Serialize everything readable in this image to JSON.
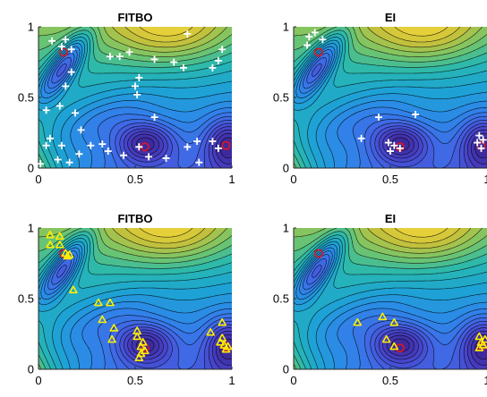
{
  "chart_data": [
    {
      "type": "scatter",
      "title": "FITBO",
      "background": "contour",
      "xlim": [
        0,
        1
      ],
      "ylim": [
        0,
        1
      ],
      "x_ticks": [
        "0",
        "0.5",
        "1"
      ],
      "y_ticks": [
        "0",
        "0.5",
        "1"
      ],
      "marker": "plus",
      "marker_color": "#ffffff",
      "optima": [
        {
          "x": 0.13,
          "y": 0.82
        },
        {
          "x": 0.55,
          "y": 0.15
        },
        {
          "x": 0.97,
          "y": 0.16
        }
      ],
      "points": [
        {
          "x": 0.07,
          "y": 0.9
        },
        {
          "x": 0.12,
          "y": 0.86
        },
        {
          "x": 0.14,
          "y": 0.91
        },
        {
          "x": 0.17,
          "y": 0.84
        },
        {
          "x": 0.17,
          "y": 0.68
        },
        {
          "x": 0.14,
          "y": 0.58
        },
        {
          "x": 0.11,
          "y": 0.44
        },
        {
          "x": 0.04,
          "y": 0.41
        },
        {
          "x": 0.19,
          "y": 0.39
        },
        {
          "x": 0.22,
          "y": 0.27
        },
        {
          "x": 0.06,
          "y": 0.21
        },
        {
          "x": 0.04,
          "y": 0.16
        },
        {
          "x": 0.12,
          "y": 0.16
        },
        {
          "x": 0.1,
          "y": 0.06
        },
        {
          "x": 0.16,
          "y": 0.04
        },
        {
          "x": 0.27,
          "y": 0.16
        },
        {
          "x": 0.36,
          "y": 0.12
        },
        {
          "x": 0.33,
          "y": 0.17
        },
        {
          "x": 0.21,
          "y": 0.1
        },
        {
          "x": 0.44,
          "y": 0.09
        },
        {
          "x": 0.52,
          "y": 0.15
        },
        {
          "x": 0.5,
          "y": 0.58
        },
        {
          "x": 0.51,
          "y": 0.52
        },
        {
          "x": 0.52,
          "y": 0.64
        },
        {
          "x": 0.37,
          "y": 0.79
        },
        {
          "x": 0.42,
          "y": 0.79
        },
        {
          "x": 0.47,
          "y": 0.82
        },
        {
          "x": 0.6,
          "y": 0.77
        },
        {
          "x": 0.7,
          "y": 0.75
        },
        {
          "x": 0.75,
          "y": 0.71
        },
        {
          "x": 0.77,
          "y": 0.95
        },
        {
          "x": 0.9,
          "y": 0.71
        },
        {
          "x": 0.93,
          "y": 0.76
        },
        {
          "x": 0.95,
          "y": 0.84
        },
        {
          "x": 0.6,
          "y": 0.36
        },
        {
          "x": 0.66,
          "y": 0.07
        },
        {
          "x": 0.77,
          "y": 0.15
        },
        {
          "x": 0.82,
          "y": 0.19
        },
        {
          "x": 0.9,
          "y": 0.19
        },
        {
          "x": 0.93,
          "y": 0.14
        },
        {
          "x": 0.83,
          "y": 0.04
        },
        {
          "x": 0.57,
          "y": 0.08
        },
        {
          "x": 0.01,
          "y": 0.03
        }
      ]
    },
    {
      "type": "scatter",
      "title": "EI",
      "background": "contour",
      "xlim": [
        0,
        1
      ],
      "ylim": [
        0,
        1
      ],
      "x_ticks": [
        "0",
        "0.5",
        "1"
      ],
      "y_ticks": [
        "0",
        "0.5",
        "1"
      ],
      "marker": "plus",
      "marker_color": "#ffffff",
      "optima": [
        {
          "x": 0.13,
          "y": 0.82
        },
        {
          "x": 0.55,
          "y": 0.15
        },
        {
          "x": 0.97,
          "y": 0.16
        }
      ],
      "points": [
        {
          "x": 0.08,
          "y": 0.93
        },
        {
          "x": 0.07,
          "y": 0.87
        },
        {
          "x": 0.15,
          "y": 0.91
        },
        {
          "x": 0.11,
          "y": 0.96
        },
        {
          "x": 0.44,
          "y": 0.36
        },
        {
          "x": 0.63,
          "y": 0.38
        },
        {
          "x": 0.35,
          "y": 0.21
        },
        {
          "x": 0.49,
          "y": 0.18
        },
        {
          "x": 0.52,
          "y": 0.16
        },
        {
          "x": 0.5,
          "y": 0.12
        },
        {
          "x": 0.55,
          "y": 0.14
        },
        {
          "x": 0.96,
          "y": 0.23
        },
        {
          "x": 0.95,
          "y": 0.18
        },
        {
          "x": 0.97,
          "y": 0.14
        },
        {
          "x": 0.98,
          "y": 0.2
        }
      ]
    },
    {
      "type": "scatter",
      "title": "FITBO",
      "background": "contour",
      "xlim": [
        0,
        1
      ],
      "ylim": [
        0,
        1
      ],
      "x_ticks": [
        "0",
        "0.5",
        "1"
      ],
      "y_ticks": [
        "0",
        "0.5",
        "1"
      ],
      "marker": "triangle",
      "marker_color": "#ffee00",
      "optima": [
        {
          "x": 0.13,
          "y": 0.82
        },
        {
          "x": 0.55,
          "y": 0.15
        },
        {
          "x": 0.97,
          "y": 0.16
        }
      ],
      "points": [
        {
          "x": 0.06,
          "y": 0.95
        },
        {
          "x": 0.06,
          "y": 0.88
        },
        {
          "x": 0.11,
          "y": 0.94
        },
        {
          "x": 0.11,
          "y": 0.88
        },
        {
          "x": 0.14,
          "y": 0.82
        },
        {
          "x": 0.15,
          "y": 0.8
        },
        {
          "x": 0.16,
          "y": 0.81
        },
        {
          "x": 0.18,
          "y": 0.56
        },
        {
          "x": 0.31,
          "y": 0.47
        },
        {
          "x": 0.37,
          "y": 0.47
        },
        {
          "x": 0.33,
          "y": 0.35
        },
        {
          "x": 0.39,
          "y": 0.29
        },
        {
          "x": 0.38,
          "y": 0.21
        },
        {
          "x": 0.51,
          "y": 0.23
        },
        {
          "x": 0.53,
          "y": 0.16
        },
        {
          "x": 0.53,
          "y": 0.11
        },
        {
          "x": 0.54,
          "y": 0.19
        },
        {
          "x": 0.52,
          "y": 0.08
        },
        {
          "x": 0.55,
          "y": 0.13
        },
        {
          "x": 0.51,
          "y": 0.27
        },
        {
          "x": 0.89,
          "y": 0.26
        },
        {
          "x": 0.95,
          "y": 0.33
        },
        {
          "x": 0.94,
          "y": 0.19
        },
        {
          "x": 0.96,
          "y": 0.17
        },
        {
          "x": 0.97,
          "y": 0.14
        },
        {
          "x": 0.98,
          "y": 0.16
        },
        {
          "x": 0.95,
          "y": 0.22
        }
      ]
    },
    {
      "type": "scatter",
      "title": "EI",
      "background": "contour",
      "xlim": [
        0,
        1
      ],
      "ylim": [
        0,
        1
      ],
      "x_ticks": [
        "0",
        "0.5",
        "1"
      ],
      "y_ticks": [
        "0",
        "0.5",
        "1"
      ],
      "marker": "triangle",
      "marker_color": "#ffee00",
      "optima": [
        {
          "x": 0.13,
          "y": 0.82
        },
        {
          "x": 0.55,
          "y": 0.15
        },
        {
          "x": 0.97,
          "y": 0.16
        }
      ],
      "points": [
        {
          "x": 0.33,
          "y": 0.33
        },
        {
          "x": 0.46,
          "y": 0.37
        },
        {
          "x": 0.52,
          "y": 0.33
        },
        {
          "x": 0.48,
          "y": 0.21
        },
        {
          "x": 0.52,
          "y": 0.16
        },
        {
          "x": 0.96,
          "y": 0.23
        },
        {
          "x": 0.97,
          "y": 0.19
        },
        {
          "x": 0.98,
          "y": 0.17
        },
        {
          "x": 0.96,
          "y": 0.15
        },
        {
          "x": 0.99,
          "y": 0.21
        }
      ]
    }
  ],
  "colors": {
    "colormap": [
      "#3e2a9c",
      "#4742c8",
      "#4363e4",
      "#2f84ea",
      "#1ea2d6",
      "#27b8b0",
      "#77c568",
      "#c8c13a",
      "#f7d93a"
    ],
    "contour_line": "#000000",
    "optimum_marker": "#e2141e",
    "axis": "#262626"
  }
}
